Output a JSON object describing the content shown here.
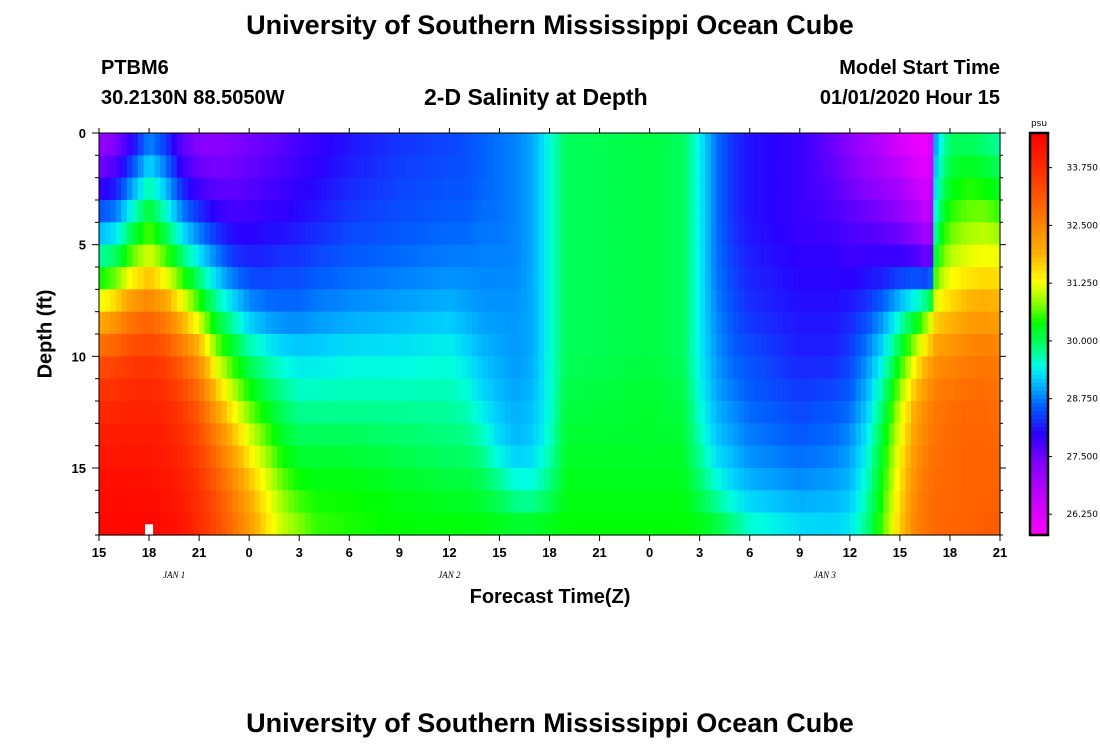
{
  "header": {
    "title": "University of Southern Mississippi Ocean Cube",
    "station": "PTBM6",
    "coords": "30.2130N 88.5050W",
    "subtitle": "2-D Salinity at Depth",
    "start_label": "Model Start Time",
    "start_time": "01/01/2020 Hour 15"
  },
  "footer": {
    "title": "University of Southern Mississippi Ocean Cube"
  },
  "chart_data": {
    "type": "heatmap",
    "xlabel": "Forecast Time(Z)",
    "ylabel": "Depth (ft)",
    "x_start_hour": 15,
    "x_end_hour": 69,
    "x_ticks": [
      {
        "hour": 15,
        "label": "15"
      },
      {
        "hour": 18,
        "label": "18"
      },
      {
        "hour": 21,
        "label": "21"
      },
      {
        "hour": 24,
        "label": "0"
      },
      {
        "hour": 27,
        "label": "3"
      },
      {
        "hour": 30,
        "label": "6"
      },
      {
        "hour": 33,
        "label": "9"
      },
      {
        "hour": 36,
        "label": "12"
      },
      {
        "hour": 39,
        "label": "15"
      },
      {
        "hour": 42,
        "label": "18"
      },
      {
        "hour": 45,
        "label": "21"
      },
      {
        "hour": 48,
        "label": "0"
      },
      {
        "hour": 51,
        "label": "3"
      },
      {
        "hour": 54,
        "label": "6"
      },
      {
        "hour": 57,
        "label": "9"
      },
      {
        "hour": 60,
        "label": "12"
      },
      {
        "hour": 63,
        "label": "15"
      },
      {
        "hour": 66,
        "label": "18"
      },
      {
        "hour": 69,
        "label": "21"
      }
    ],
    "day_labels": [
      {
        "hour": 19.5,
        "label": "JAN 1"
      },
      {
        "hour": 36,
        "label": "JAN 2"
      },
      {
        "hour": 58.5,
        "label": "JAN 3"
      }
    ],
    "y_range": [
      0,
      18
    ],
    "y_ticks": [
      0,
      5,
      10,
      15
    ],
    "colorbar": {
      "unit": "psu",
      "range": [
        25.8,
        34.5
      ],
      "tick_labels": [
        "33.750",
        "32.500",
        "31.250",
        "30.000",
        "28.750",
        "27.500",
        "26.250"
      ],
      "stops": [
        {
          "v": 25.8,
          "color": "#ff00ff"
        },
        {
          "v": 26.5,
          "color": "#cc00ff"
        },
        {
          "v": 27.3,
          "color": "#8800ff"
        },
        {
          "v": 28.0,
          "color": "#2a00ff"
        },
        {
          "v": 28.6,
          "color": "#0060ff"
        },
        {
          "v": 29.2,
          "color": "#00d0ff"
        },
        {
          "v": 29.5,
          "color": "#00ffe0"
        },
        {
          "v": 29.9,
          "color": "#00ff70"
        },
        {
          "v": 30.4,
          "color": "#00ff00"
        },
        {
          "v": 30.9,
          "color": "#a0ff00"
        },
        {
          "v": 31.3,
          "color": "#ffff00"
        },
        {
          "v": 31.9,
          "color": "#ffb000"
        },
        {
          "v": 32.8,
          "color": "#ff7000"
        },
        {
          "v": 33.7,
          "color": "#ff3000"
        },
        {
          "v": 34.5,
          "color": "#ff0000"
        }
      ]
    },
    "marker": {
      "hour": 18,
      "depth": 17.7,
      "color": "#ffffff"
    },
    "salinity_profiles": {
      "depths_ft": [
        0,
        2,
        4,
        6,
        8,
        10,
        12,
        14,
        16,
        18
      ],
      "columns": [
        {
          "hour": 15,
          "values": [
            27.0,
            27.6,
            28.8,
            30.0,
            31.6,
            33.2,
            33.8,
            34.1,
            34.3,
            34.4
          ]
        },
        {
          "hour": 16,
          "values": [
            27.2,
            27.9,
            29.0,
            30.3,
            32.0,
            33.3,
            33.8,
            34.1,
            34.3,
            34.4
          ]
        },
        {
          "hour": 17,
          "values": [
            27.8,
            28.7,
            29.8,
            31.0,
            32.6,
            33.5,
            33.9,
            34.1,
            34.3,
            34.4
          ]
        },
        {
          "hour": 18,
          "values": [
            28.6,
            29.5,
            30.4,
            31.4,
            32.8,
            33.6,
            33.9,
            34.1,
            34.3,
            34.4
          ]
        },
        {
          "hour": 19,
          "values": [
            28.2,
            28.9,
            29.8,
            30.9,
            32.4,
            33.4,
            33.8,
            34.0,
            34.2,
            34.3
          ]
        },
        {
          "hour": 20,
          "values": [
            27.5,
            28.0,
            29.0,
            30.2,
            31.6,
            32.9,
            33.5,
            33.8,
            34.0,
            34.2
          ]
        },
        {
          "hour": 21,
          "values": [
            27.2,
            27.6,
            28.5,
            29.6,
            30.8,
            32.2,
            33.0,
            33.4,
            33.7,
            33.8
          ]
        },
        {
          "hour": 22,
          "values": [
            27.2,
            27.5,
            28.1,
            29.0,
            30.0,
            31.0,
            32.0,
            32.8,
            33.2,
            33.4
          ]
        },
        {
          "hour": 23,
          "values": [
            27.3,
            27.5,
            27.9,
            28.5,
            29.5,
            30.4,
            31.2,
            32.0,
            32.6,
            32.9
          ]
        },
        {
          "hour": 24,
          "values": [
            27.4,
            27.6,
            27.9,
            28.3,
            29.0,
            29.9,
            30.6,
            31.3,
            31.9,
            32.3
          ]
        },
        {
          "hour": 25,
          "values": [
            27.5,
            27.7,
            28.0,
            28.3,
            28.8,
            29.6,
            30.2,
            30.8,
            31.3,
            31.6
          ]
        },
        {
          "hour": 26,
          "values": [
            27.6,
            27.8,
            28.0,
            28.4,
            28.7,
            29.4,
            29.9,
            30.3,
            30.8,
            31.1
          ]
        },
        {
          "hour": 27,
          "values": [
            27.8,
            27.9,
            28.1,
            28.4,
            28.7,
            29.3,
            29.7,
            30.1,
            30.5,
            30.9
          ]
        },
        {
          "hour": 28,
          "values": [
            27.9,
            28.0,
            28.2,
            28.5,
            28.8,
            29.3,
            29.7,
            30.1,
            30.4,
            30.6
          ]
        },
        {
          "hour": 30,
          "values": [
            28.1,
            28.2,
            28.4,
            28.6,
            28.9,
            29.4,
            29.7,
            30.1,
            30.4,
            30.5
          ]
        },
        {
          "hour": 33,
          "values": [
            28.3,
            28.4,
            28.5,
            28.7,
            29.0,
            29.4,
            29.7,
            30.0,
            30.3,
            30.4
          ]
        },
        {
          "hour": 36,
          "values": [
            28.4,
            28.5,
            28.6,
            28.8,
            29.1,
            29.5,
            29.7,
            29.9,
            30.2,
            30.4
          ]
        },
        {
          "hour": 37,
          "values": [
            28.5,
            28.5,
            28.6,
            28.8,
            29.0,
            29.3,
            29.6,
            29.9,
            30.2,
            30.4
          ]
        },
        {
          "hour": 38,
          "values": [
            28.6,
            28.6,
            28.7,
            28.8,
            28.9,
            29.1,
            29.3,
            29.7,
            30.1,
            30.4
          ]
        },
        {
          "hour": 39,
          "values": [
            28.7,
            28.7,
            28.7,
            28.8,
            28.9,
            29.0,
            29.1,
            29.3,
            29.9,
            30.4
          ]
        },
        {
          "hour": 40,
          "values": [
            28.8,
            28.8,
            28.8,
            28.8,
            28.9,
            28.9,
            29.0,
            29.1,
            29.6,
            30.4
          ]
        },
        {
          "hour": 41,
          "values": [
            29.0,
            29.0,
            29.0,
            29.0,
            29.0,
            29.0,
            29.1,
            29.2,
            29.6,
            30.4
          ]
        },
        {
          "hour": 42,
          "values": [
            29.5,
            29.5,
            29.5,
            29.5,
            29.5,
            29.5,
            29.5,
            29.6,
            29.9,
            30.4
          ]
        },
        {
          "hour": 43,
          "values": [
            30.0,
            30.0,
            30.0,
            30.0,
            30.0,
            30.0,
            30.1,
            30.2,
            30.3,
            30.4
          ]
        },
        {
          "hour": 48,
          "values": [
            30.1,
            30.1,
            30.1,
            30.1,
            30.1,
            30.1,
            30.2,
            30.2,
            30.3,
            30.4
          ]
        },
        {
          "hour": 50,
          "values": [
            30.0,
            30.0,
            30.0,
            30.0,
            30.0,
            30.0,
            30.1,
            30.2,
            30.3,
            30.4
          ]
        },
        {
          "hour": 51,
          "values": [
            29.4,
            29.4,
            29.4,
            29.4,
            29.4,
            29.4,
            29.5,
            29.7,
            30.0,
            30.4
          ]
        },
        {
          "hour": 52,
          "values": [
            28.7,
            28.7,
            28.7,
            28.7,
            28.8,
            28.9,
            29.0,
            29.2,
            29.6,
            30.3
          ]
        },
        {
          "hour": 53,
          "values": [
            28.3,
            28.3,
            28.3,
            28.4,
            28.5,
            28.6,
            28.8,
            29.0,
            29.3,
            30.0
          ]
        },
        {
          "hour": 54,
          "values": [
            28.1,
            28.1,
            28.1,
            28.2,
            28.3,
            28.5,
            28.6,
            28.8,
            29.1,
            29.7
          ]
        },
        {
          "hour": 57,
          "values": [
            27.9,
            27.9,
            27.9,
            28.0,
            28.1,
            28.2,
            28.4,
            28.6,
            28.9,
            29.4
          ]
        },
        {
          "hour": 59,
          "values": [
            27.5,
            27.6,
            27.8,
            28.0,
            28.1,
            28.2,
            28.5,
            28.7,
            29.0,
            29.3
          ]
        },
        {
          "hour": 60,
          "values": [
            27.2,
            27.4,
            27.7,
            27.9,
            28.2,
            28.4,
            28.6,
            28.9,
            29.1,
            29.4
          ]
        },
        {
          "hour": 61,
          "values": [
            26.9,
            27.2,
            27.6,
            28.0,
            28.4,
            28.8,
            29.1,
            29.4,
            29.6,
            29.9
          ]
        },
        {
          "hour": 62,
          "values": [
            26.6,
            27.0,
            27.5,
            28.0,
            28.8,
            29.4,
            29.9,
            30.3,
            30.5,
            30.7
          ]
        },
        {
          "hour": 63,
          "values": [
            26.2,
            26.8,
            27.3,
            28.1,
            29.4,
            30.3,
            31.0,
            31.3,
            31.5,
            31.7
          ]
        },
        {
          "hour": 64,
          "values": [
            26.0,
            26.4,
            27.0,
            28.0,
            30.0,
            31.3,
            32.0,
            32.3,
            32.5,
            32.6
          ]
        },
        {
          "hour": 64.8,
          "values": [
            26.0,
            26.2,
            26.6,
            27.6,
            30.8,
            32.0,
            32.5,
            32.7,
            32.8,
            32.8
          ]
        },
        {
          "hour": 65.2,
          "values": [
            29.2,
            29.5,
            29.9,
            30.6,
            31.5,
            32.3,
            32.7,
            32.8,
            32.9,
            32.9
          ]
        },
        {
          "hour": 66,
          "values": [
            29.9,
            30.2,
            30.6,
            31.1,
            31.7,
            32.4,
            32.8,
            32.9,
            32.9,
            33.0
          ]
        },
        {
          "hour": 67,
          "values": [
            29.9,
            30.4,
            30.8,
            31.3,
            32.0,
            32.6,
            32.9,
            33.0,
            33.0,
            33.0
          ]
        },
        {
          "hour": 68,
          "values": [
            29.8,
            30.3,
            30.9,
            31.4,
            32.1,
            32.7,
            32.9,
            33.0,
            33.0,
            33.1
          ]
        },
        {
          "hour": 69,
          "values": [
            29.6,
            30.1,
            30.7,
            31.4,
            32.0,
            32.6,
            32.8,
            32.9,
            33.0,
            33.1
          ]
        }
      ]
    }
  }
}
